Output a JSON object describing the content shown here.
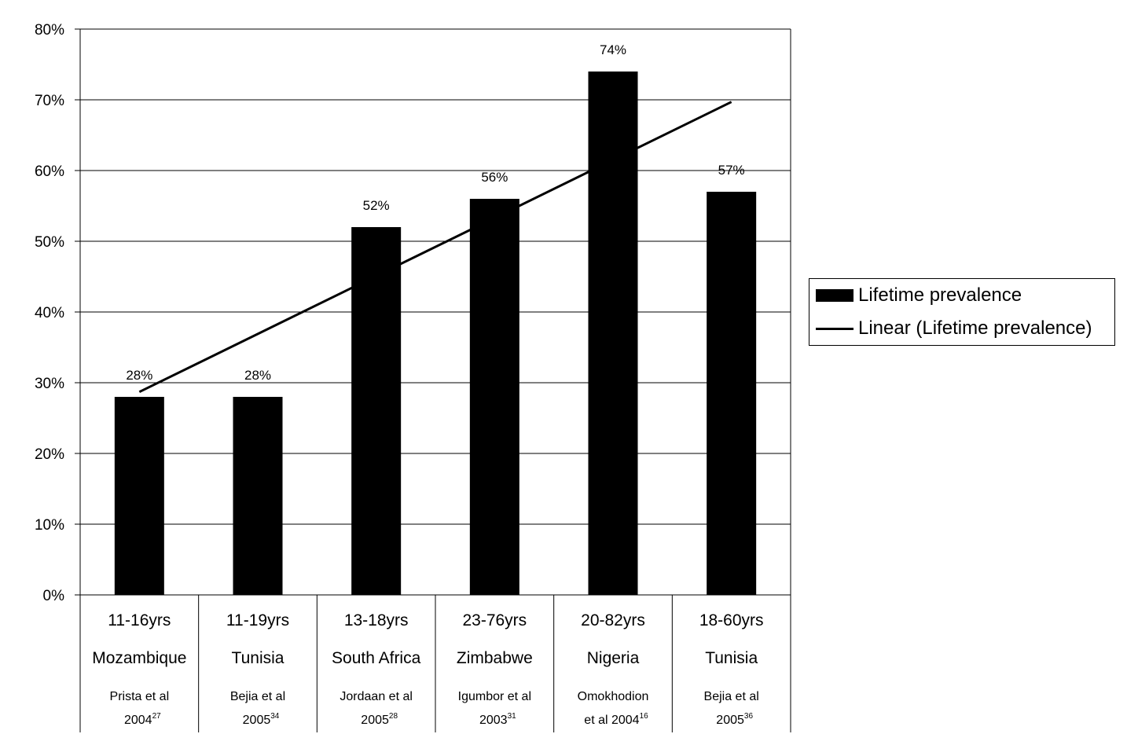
{
  "chart_data": {
    "type": "bar",
    "title": "",
    "xlabel": "",
    "ylabel": "",
    "ylim": [
      0,
      80
    ],
    "y_ticks": [
      "0%",
      "10%",
      "20%",
      "30%",
      "40%",
      "50%",
      "60%",
      "70%",
      "80%"
    ],
    "grid": true,
    "legend_position": "right",
    "categories": [
      {
        "age": "11-16yrs",
        "country": "Mozambique",
        "ref_line1": "Prista et al",
        "ref_line2": "2004",
        "ref_sup": "27"
      },
      {
        "age": "11-19yrs",
        "country": "Tunisia",
        "ref_line1": "Bejia et al",
        "ref_line2": "2005",
        "ref_sup": "34"
      },
      {
        "age": "13-18yrs",
        "country": "South Africa",
        "ref_line1": "Jordaan et al",
        "ref_line2": "2005",
        "ref_sup": "28"
      },
      {
        "age": "23-76yrs",
        "country": "Zimbabwe",
        "ref_line1": "Igumbor et al",
        "ref_line2": "2003",
        "ref_sup": "31"
      },
      {
        "age": "20-82yrs",
        "country": "Nigeria",
        "ref_line1": "Omokhodion",
        "ref_line2": "et al 2004",
        "ref_sup": "16"
      },
      {
        "age": "18-60yrs",
        "country": "Tunisia",
        "ref_line1": "Bejia et al",
        "ref_line2": "2005",
        "ref_sup": "36"
      }
    ],
    "series": [
      {
        "name": "Lifetime prevalence",
        "type": "bar",
        "color": "#000000",
        "values": [
          28,
          28,
          52,
          56,
          74,
          57
        ],
        "data_labels": [
          "28%",
          "28%",
          "52%",
          "56%",
          "74%",
          "57%"
        ]
      },
      {
        "name": "Linear (Lifetime prevalence)",
        "type": "trendline",
        "color": "#000000",
        "start": 28.7,
        "end": 69.7
      }
    ]
  },
  "legend": {
    "bar_label": "Lifetime prevalence",
    "line_label": "Linear (Lifetime prevalence)"
  }
}
